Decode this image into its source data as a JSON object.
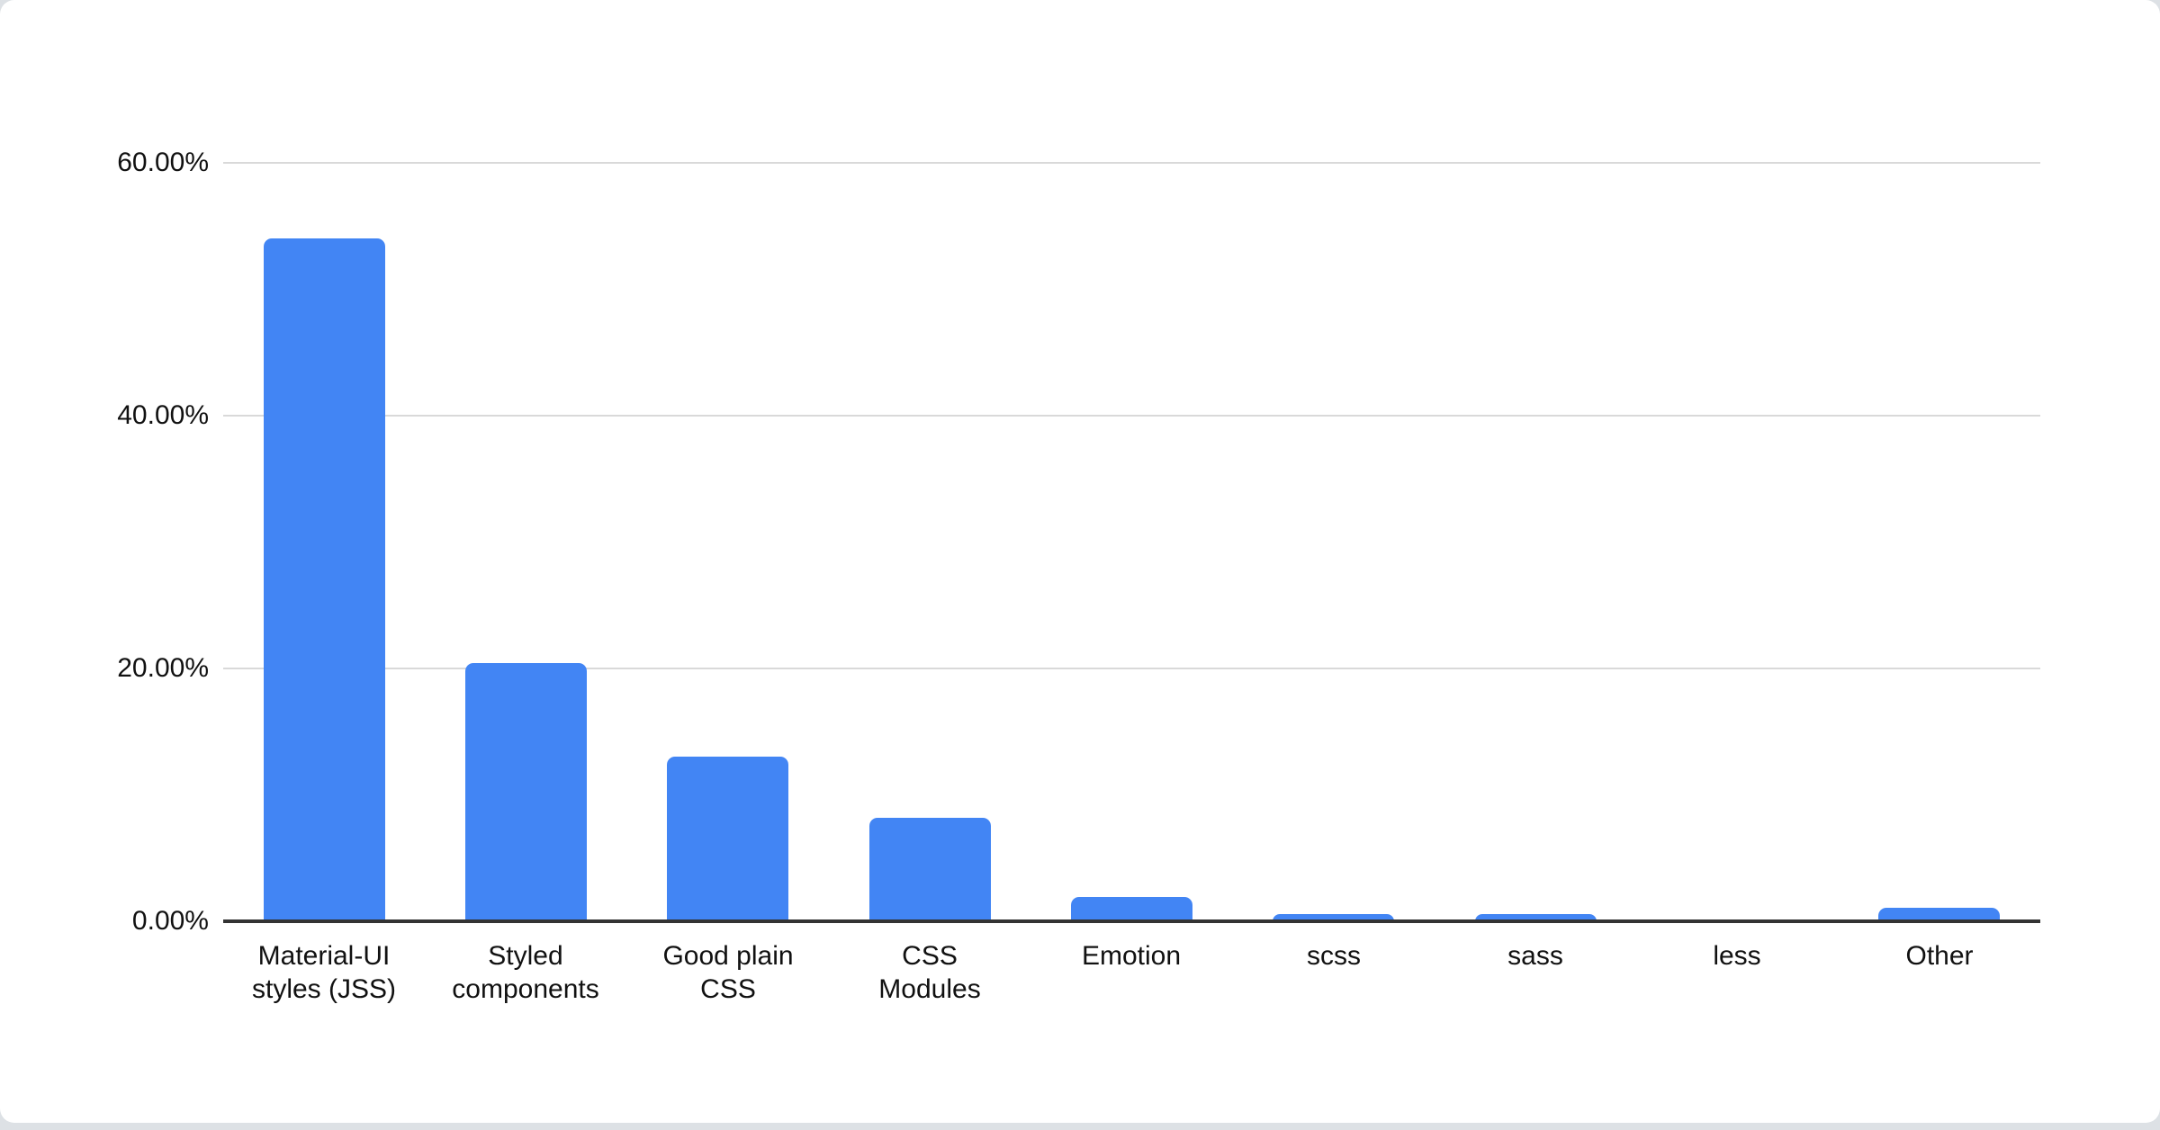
{
  "page": {
    "background_color": "#dde1e5",
    "card_color": "#ffffff"
  },
  "chart_data": {
    "type": "bar",
    "categories": [
      "Material-UI styles (JSS)",
      "Styled components",
      "Good plain CSS",
      "CSS Modules",
      "Emotion",
      "scss",
      "sass",
      "less",
      "Other"
    ],
    "category_lines": [
      [
        "Material-UI",
        "styles (JSS)"
      ],
      [
        "Styled",
        "components"
      ],
      [
        "Good plain",
        "CSS"
      ],
      [
        "CSS",
        "Modules"
      ],
      [
        "Emotion"
      ],
      [
        "scss"
      ],
      [
        "sass"
      ],
      [
        "less"
      ],
      [
        "Other"
      ]
    ],
    "values": [
      54.0,
      20.4,
      13.0,
      8.2,
      1.9,
      0.6,
      0.6,
      0.1,
      1.1
    ],
    "value_unit": "percent",
    "y_ticks": [
      {
        "label": "60.00%",
        "value": 60
      },
      {
        "label": "40.00%",
        "value": 40
      },
      {
        "label": "20.00%",
        "value": 20
      },
      {
        "label": "0.00%",
        "value": 0
      }
    ],
    "ylim": [
      0,
      64
    ],
    "xlabel": "",
    "ylabel": "",
    "grid": true,
    "legend": "none",
    "bar_color": "#4285f4",
    "grid_color": "#d9d9d9",
    "axis_color": "#333333",
    "text_color": "#111111"
  }
}
